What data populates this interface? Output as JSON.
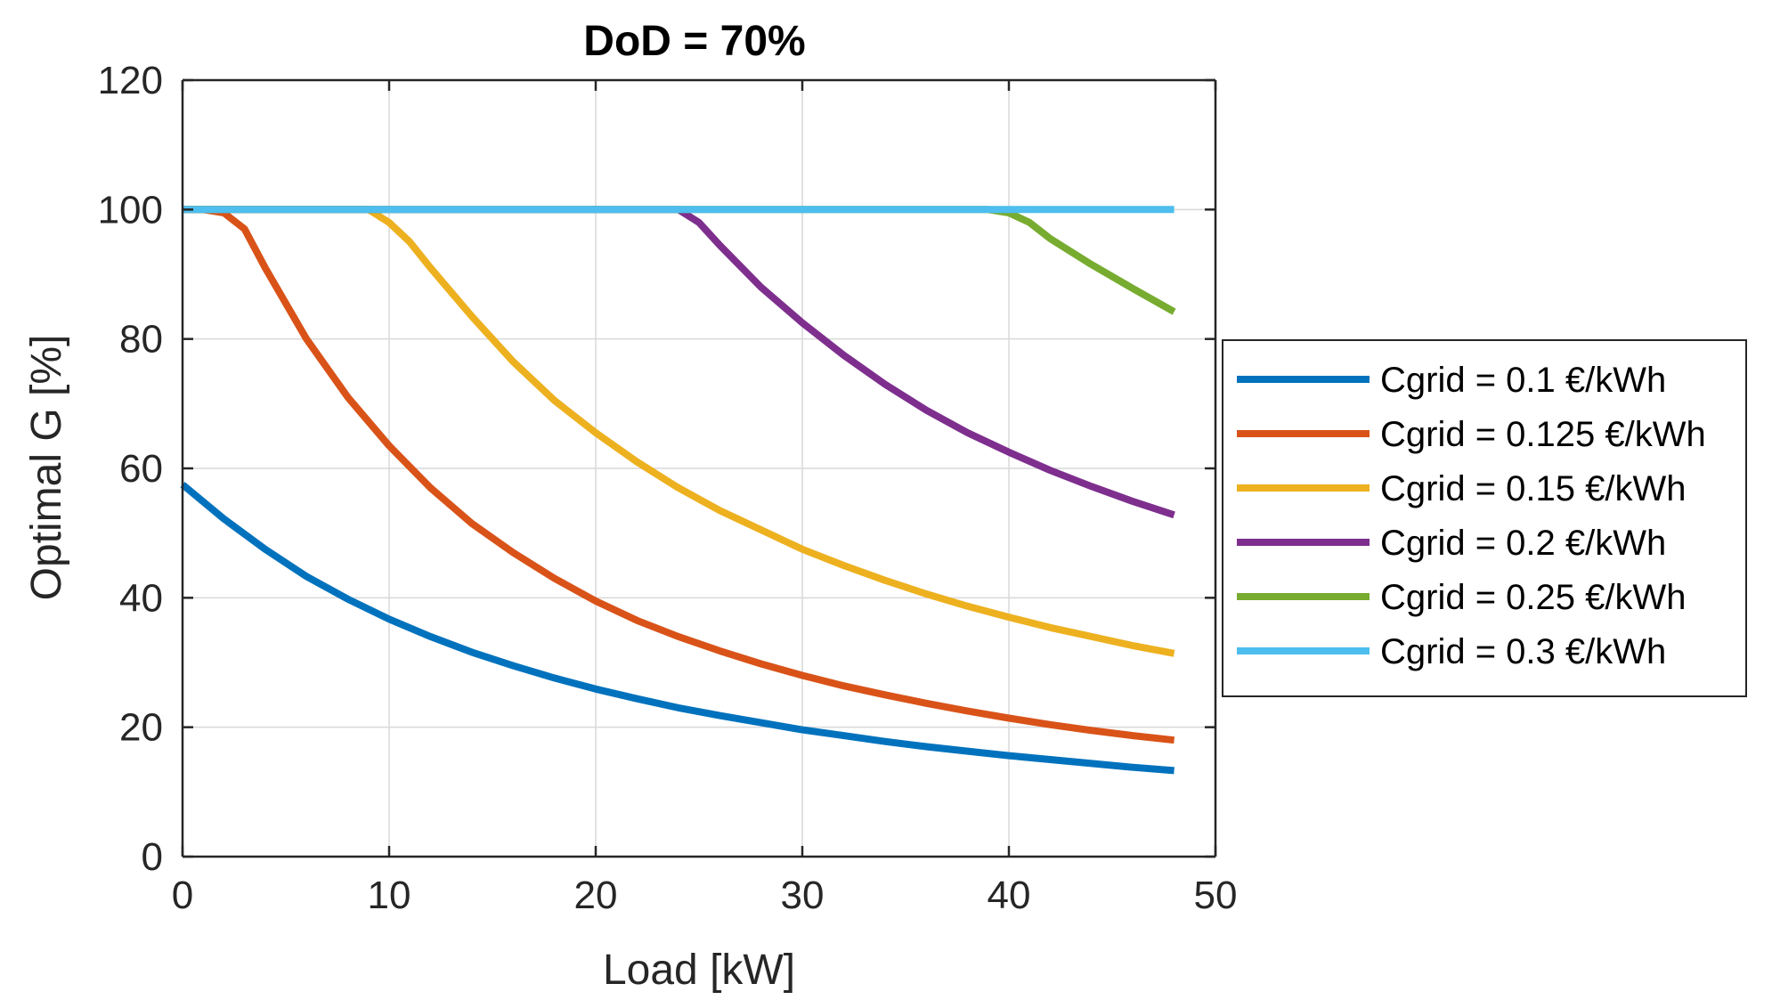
{
  "chart_data": {
    "type": "line",
    "title": "DoD = 70%",
    "xlabel": "Load [kW]",
    "ylabel": "Optimal G [%]",
    "xlim": [
      0,
      50
    ],
    "ylim": [
      0,
      120
    ],
    "xticks": [
      0,
      10,
      20,
      30,
      40,
      50
    ],
    "yticks": [
      0,
      20,
      40,
      60,
      80,
      100,
      120
    ],
    "grid": true,
    "legend_position": "right",
    "series": [
      {
        "name": "Cgrid = 0.1 €/kWh",
        "color": "#0072BD",
        "x": [
          0,
          2,
          4,
          6,
          8,
          10,
          12,
          14,
          16,
          18,
          20,
          22,
          24,
          26,
          28,
          30,
          32,
          34,
          36,
          38,
          40,
          42,
          44,
          46,
          48
        ],
        "y": [
          57.5,
          52.2,
          47.5,
          43.3,
          39.8,
          36.7,
          34.0,
          31.6,
          29.5,
          27.6,
          25.9,
          24.4,
          23.0,
          21.8,
          20.7,
          19.6,
          18.7,
          17.8,
          17.0,
          16.3,
          15.6,
          15.0,
          14.4,
          13.8,
          13.3
        ]
      },
      {
        "name": "Cgrid = 0.125 €/kWh",
        "color": "#D95319",
        "x": [
          0,
          1,
          2,
          3,
          4,
          6,
          8,
          10,
          12,
          14,
          16,
          18,
          20,
          22,
          24,
          26,
          28,
          30,
          32,
          34,
          36,
          38,
          40,
          42,
          44,
          46,
          48
        ],
        "y": [
          100,
          100,
          99.5,
          97,
          91,
          80,
          71,
          63.5,
          57,
          51.5,
          47,
          43,
          39.5,
          36.5,
          34,
          31.8,
          29.8,
          28,
          26.4,
          25,
          23.7,
          22.5,
          21.4,
          20.4,
          19.5,
          18.7,
          18.0
        ]
      },
      {
        "name": "Cgrid = 0.15 €/kWh",
        "color": "#EDB120",
        "x": [
          0,
          2,
          4,
          6,
          8,
          9,
          10,
          11,
          12,
          14,
          16,
          18,
          20,
          22,
          24,
          26,
          28,
          30,
          32,
          34,
          36,
          38,
          40,
          42,
          44,
          46,
          48
        ],
        "y": [
          100,
          100,
          100,
          100,
          100,
          100,
          98,
          95,
          91,
          83.5,
          76.5,
          70.5,
          65.5,
          61,
          57,
          53.5,
          50.5,
          47.5,
          45,
          42.7,
          40.6,
          38.7,
          37,
          35.4,
          34,
          32.6,
          31.4
        ]
      },
      {
        "name": "Cgrid = 0.2 €/kWh",
        "color": "#7E2F8E",
        "x": [
          0,
          5,
          10,
          15,
          20,
          22,
          24,
          25,
          26,
          28,
          30,
          32,
          34,
          36,
          38,
          40,
          42,
          44,
          46,
          48
        ],
        "y": [
          100,
          100,
          100,
          100,
          100,
          100,
          100,
          98,
          94.5,
          88,
          82.5,
          77.5,
          73,
          69,
          65.5,
          62.5,
          59.7,
          57.2,
          54.9,
          52.8
        ]
      },
      {
        "name": "Cgrid = 0.25 €/kWh",
        "color": "#77AC30",
        "x": [
          0,
          10,
          20,
          30,
          35,
          39,
          40,
          41,
          42,
          44,
          46,
          48
        ],
        "y": [
          100,
          100,
          100,
          100,
          100,
          100,
          99.5,
          98,
          95.5,
          91.5,
          87.8,
          84.2
        ]
      },
      {
        "name": "Cgrid = 0.3 €/kWh",
        "color": "#4DBEEE",
        "x": [
          0,
          48
        ],
        "y": [
          100,
          100
        ]
      }
    ]
  }
}
